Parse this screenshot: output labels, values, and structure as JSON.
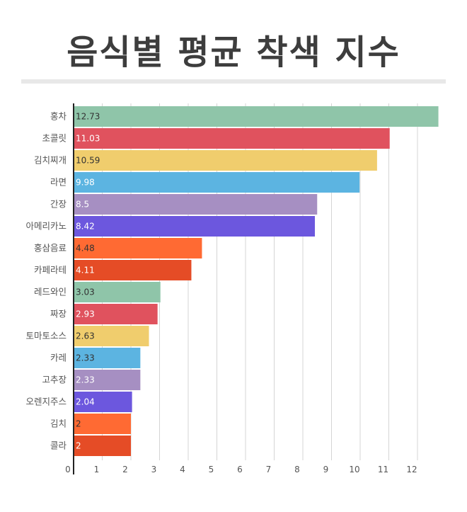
{
  "title": "음식별 평균 착색 지수",
  "chart_data": {
    "type": "bar",
    "orientation": "horizontal",
    "title": "음식별 평균 착색 지수",
    "xlabel": "",
    "ylabel": "",
    "xlim": [
      0,
      13
    ],
    "xticks": [
      0,
      1,
      2,
      3,
      4,
      5,
      6,
      7,
      8,
      9,
      10,
      11,
      12
    ],
    "grid": true,
    "categories": [
      "홍차",
      "초콜릿",
      "김치찌개",
      "라면",
      "간장",
      "아메리카노",
      "홍삼음료",
      "카페라테",
      "레드와인",
      "짜장",
      "토마토소스",
      "카레",
      "고추장",
      "오렌지주스",
      "김치",
      "콜라"
    ],
    "values": [
      12.73,
      11.03,
      10.59,
      9.98,
      8.5,
      8.42,
      4.48,
      4.11,
      3.03,
      2.93,
      2.63,
      2.33,
      2.33,
      2.04,
      2,
      2
    ],
    "labels": [
      "12.73",
      "11.03",
      "10.59",
      "9.98",
      "8.5",
      "8.42",
      "4.48",
      "4.11",
      "3.03",
      "2.93",
      "2.63",
      "2.33",
      "2.33",
      "2.04",
      "2",
      "2"
    ],
    "colors": [
      "#8fc5a9",
      "#e0525e",
      "#f0cd6d",
      "#5cb4e1",
      "#a68fc2",
      "#6c57de",
      "#ff6a33",
      "#e54c26",
      "#8fc5a9",
      "#e0525e",
      "#f0cd6d",
      "#5cb4e1",
      "#a68fc2",
      "#6c57de",
      "#ff6a33",
      "#e54c26"
    ],
    "label_colors": [
      "#333333",
      "#ffffff",
      "#333333",
      "#ffffff",
      "#ffffff",
      "#ffffff",
      "#333333",
      "#ffffff",
      "#333333",
      "#ffffff",
      "#333333",
      "#333333",
      "#ffffff",
      "#ffffff",
      "#333333",
      "#ffffff"
    ]
  }
}
